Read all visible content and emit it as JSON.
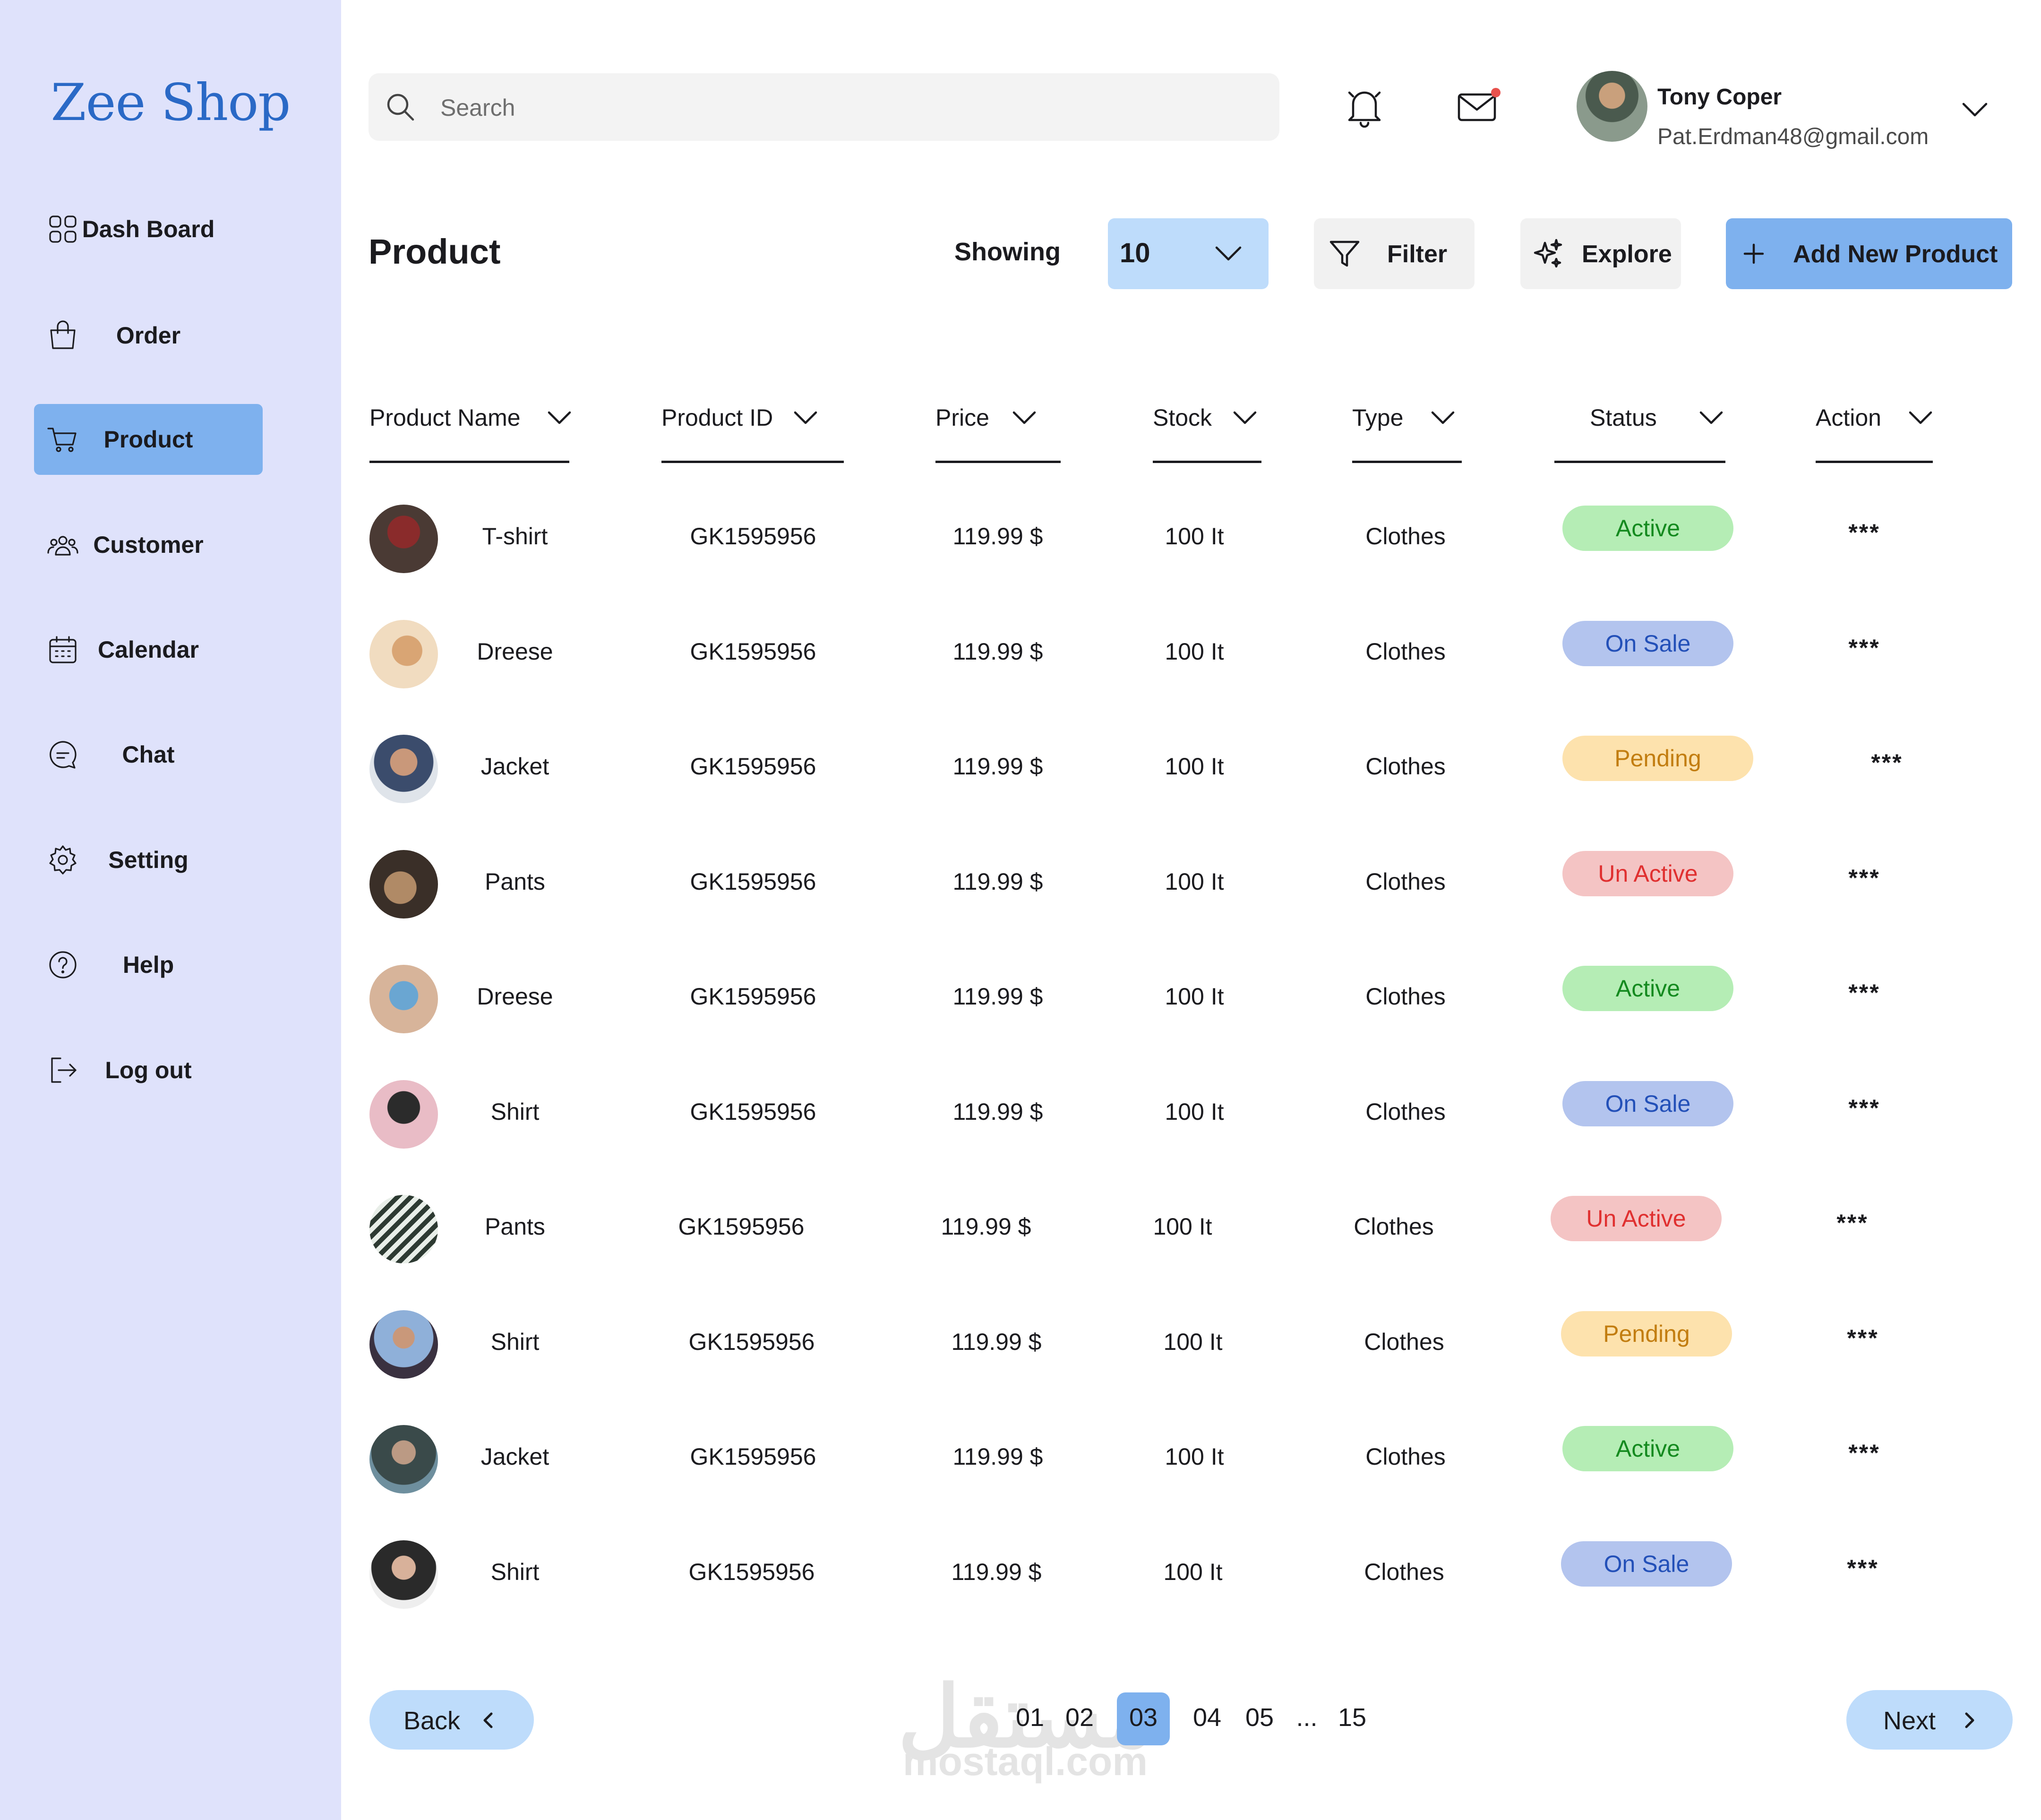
{
  "brand": {
    "name": "Zee Shop",
    "color": "#2a69c6"
  },
  "colors": {
    "sidebar_bg": "#dfe2fb",
    "accent": "#7eb1ee",
    "select_bg": "#bedcfb",
    "status_active": "#b5edb5",
    "status_onsale": "#b3c4ee",
    "status_pending": "#fde2ad",
    "status_unactive": "#f4c4c4"
  },
  "sidebar": {
    "items": [
      {
        "label": "Dash Board",
        "icon": "dashboard-grid-icon"
      },
      {
        "label": "Order",
        "icon": "shopping-bag-icon"
      },
      {
        "label": "Product",
        "icon": "shopping-cart-icon",
        "active": true
      },
      {
        "label": "Customer",
        "icon": "users-icon"
      },
      {
        "label": "Calendar",
        "icon": "calendar-icon"
      },
      {
        "label": "Chat",
        "icon": "chat-bubble-icon"
      },
      {
        "label": "Setting",
        "icon": "gear-icon"
      },
      {
        "label": "Help",
        "icon": "help-circle-icon"
      },
      {
        "label": "Log out",
        "icon": "logout-icon"
      }
    ]
  },
  "header": {
    "search_placeholder": "Search",
    "notifications_icon": "bell-icon",
    "messages_icon": "mail-icon",
    "user": {
      "name": "Tony Coper",
      "email": "Pat.Erdman48@gmail.com"
    }
  },
  "toolbar": {
    "title": "Product",
    "showing_label": "Showing",
    "showing_value": "10",
    "filter_label": "Filter",
    "explore_label": "Explore",
    "add_label": "Add New Product"
  },
  "table": {
    "columns": [
      "Product Name",
      "Product ID",
      "Price",
      "Stock",
      "Type",
      "Status",
      "Action"
    ],
    "rows": [
      {
        "name": "T-shirt",
        "id": "GK1595956",
        "price": "119.99 $",
        "stock": "100 It",
        "type": "Clothes",
        "status": "Active",
        "status_key": "active",
        "action": "***"
      },
      {
        "name": "Dreese",
        "id": "GK1595956",
        "price": "119.99 $",
        "stock": "100 It",
        "type": "Clothes",
        "status": "On Sale",
        "status_key": "onsale",
        "action": "***"
      },
      {
        "name": "Jacket",
        "id": "GK1595956",
        "price": "119.99 $",
        "stock": "100 It",
        "type": "Clothes",
        "status": "Pending",
        "status_key": "pending",
        "action": "***"
      },
      {
        "name": "Pants",
        "id": "GK1595956",
        "price": "119.99 $",
        "stock": "100 It",
        "type": "Clothes",
        "status": "Un Active",
        "status_key": "unactive",
        "action": "***"
      },
      {
        "name": "Dreese",
        "id": "GK1595956",
        "price": "119.99 $",
        "stock": "100 It",
        "type": "Clothes",
        "status": "Active",
        "status_key": "active",
        "action": "***"
      },
      {
        "name": "Shirt",
        "id": "GK1595956",
        "price": "119.99 $",
        "stock": "100 It",
        "type": "Clothes",
        "status": "On Sale",
        "status_key": "onsale",
        "action": "***"
      },
      {
        "name": "Pants",
        "id": "GK1595956",
        "price": "119.99 $",
        "stock": "100 It",
        "type": "Clothes",
        "status": "Un Active",
        "status_key": "unactive",
        "action": "***"
      },
      {
        "name": "Shirt",
        "id": "GK1595956",
        "price": "119.99 $",
        "stock": "100 It",
        "type": "Clothes",
        "status": "Pending",
        "status_key": "pending",
        "action": "***"
      },
      {
        "name": "Jacket",
        "id": "GK1595956",
        "price": "119.99 $",
        "stock": "100 It",
        "type": "Clothes",
        "status": "Active",
        "status_key": "active",
        "action": "***"
      },
      {
        "name": "Shirt",
        "id": "GK1595956",
        "price": "119.99 $",
        "stock": "100 It",
        "type": "Clothes",
        "status": "On Sale",
        "status_key": "onsale",
        "action": "***"
      }
    ]
  },
  "pagination": {
    "back_label": "Back",
    "next_label": "Next",
    "pages": [
      "01",
      "02",
      "03",
      "04",
      "05",
      "...",
      "15"
    ],
    "current": "03"
  },
  "watermark": {
    "text_ar": "مستقل",
    "text": "mostaql.com"
  }
}
